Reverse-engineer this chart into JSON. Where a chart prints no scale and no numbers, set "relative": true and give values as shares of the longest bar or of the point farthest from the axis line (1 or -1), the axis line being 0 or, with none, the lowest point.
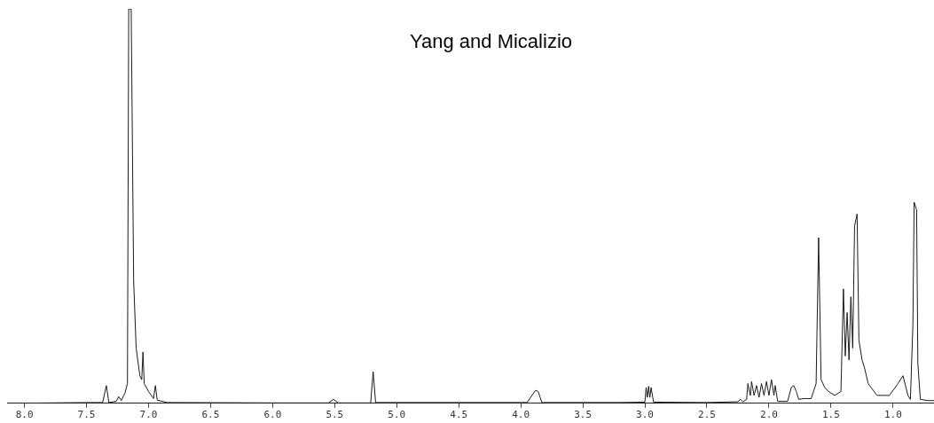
{
  "chart_data": {
    "type": "line",
    "annotations": [
      "Yang and Micalizio"
    ],
    "relative": true,
    "color": "#1a1a1a",
    "marker": "none",
    "grid": false,
    "legend": false,
    "tick_labels": "x",
    "xlim": [
      8.14,
      0.67
    ],
    "xticks": [
      {
        "value": 8.0,
        "label": "8.0"
      },
      {
        "value": 7.5,
        "label": "7.5"
      },
      {
        "value": 7.0,
        "label": "7.0"
      },
      {
        "value": 6.5,
        "label": "6.5"
      },
      {
        "value": 6.0,
        "label": "6.0"
      },
      {
        "value": 5.5,
        "label": "5.5"
      },
      {
        "value": 5.0,
        "label": "5.0"
      },
      {
        "value": 4.5,
        "label": "4.5"
      },
      {
        "value": 4.0,
        "label": "4.0"
      },
      {
        "value": 3.5,
        "label": "3.5"
      },
      {
        "value": 3.0,
        "label": "3.0"
      },
      {
        "value": 2.5,
        "label": "2.5"
      },
      {
        "value": 2.0,
        "label": "2.0"
      },
      {
        "value": 1.5,
        "label": "1.5"
      },
      {
        "value": 1.0,
        "label": "1.0"
      }
    ],
    "x": [
      8.14,
      7.45,
      7.37,
      7.34,
      7.32,
      7.26,
      7.24,
      7.22,
      7.19,
      7.17,
      7.16,
      7.14,
      7.12,
      7.1,
      7.07,
      7.055,
      7.045,
      7.035,
      7.0,
      6.96,
      6.945,
      6.93,
      6.85,
      6.0,
      5.55,
      5.51,
      5.47,
      5.21,
      5.19,
      5.17,
      4.5,
      3.95,
      3.91,
      3.88,
      3.86,
      3.83,
      3.2,
      3.0,
      2.99,
      2.98,
      2.97,
      2.96,
      2.95,
      2.93,
      2.5,
      2.25,
      2.23,
      2.21,
      2.18,
      2.17,
      2.15,
      2.14,
      2.12,
      2.1,
      2.08,
      2.06,
      2.04,
      2.02,
      2.0,
      1.98,
      1.96,
      1.95,
      1.93,
      1.85,
      1.82,
      1.8,
      1.78,
      1.76,
      1.72,
      1.66,
      1.62,
      1.6,
      1.58,
      1.55,
      1.52,
      1.47,
      1.42,
      1.4,
      1.385,
      1.37,
      1.355,
      1.34,
      1.325,
      1.31,
      1.29,
      1.275,
      1.25,
      1.23,
      1.2,
      1.13,
      1.03,
      0.96,
      0.92,
      0.88,
      0.86,
      0.84,
      0.83,
      0.81,
      0.8,
      0.78,
      0.72,
      0.67
    ],
    "values": [
      0,
      0.002,
      0.002,
      0.045,
      0.002,
      0.005,
      0.017,
      0.007,
      0.026,
      0.05,
      1,
      1,
      0.31,
      0.14,
      0.07,
      0.06,
      0.13,
      0.05,
      0.03,
      0.012,
      0.045,
      0.008,
      0.002,
      0.001,
      0.001,
      0.01,
      0.001,
      0.001,
      0.08,
      0.002,
      0.002,
      0.002,
      0.02,
      0.033,
      0.03,
      0.002,
      0.002,
      0.003,
      0.04,
      0.015,
      0.043,
      0.015,
      0.04,
      0.003,
      0.002,
      0.004,
      0.01,
      0.004,
      0.01,
      0.05,
      0.02,
      0.055,
      0.02,
      0.045,
      0.015,
      0.05,
      0.02,
      0.055,
      0.02,
      0.06,
      0.02,
      0.045,
      0.005,
      0.005,
      0.04,
      0.045,
      0.03,
      0.01,
      0.012,
      0.012,
      0.05,
      0.42,
      0.06,
      0.04,
      0.03,
      0.02,
      0.03,
      0.29,
      0.12,
      0.23,
      0.11,
      0.27,
      0.14,
      0.45,
      0.48,
      0.16,
      0.11,
      0.09,
      0.05,
      0.02,
      0.02,
      0.05,
      0.07,
      0.02,
      0.01,
      0.2,
      0.51,
      0.49,
      0.1,
      0.01,
      0.007,
      0.007
    ]
  }
}
